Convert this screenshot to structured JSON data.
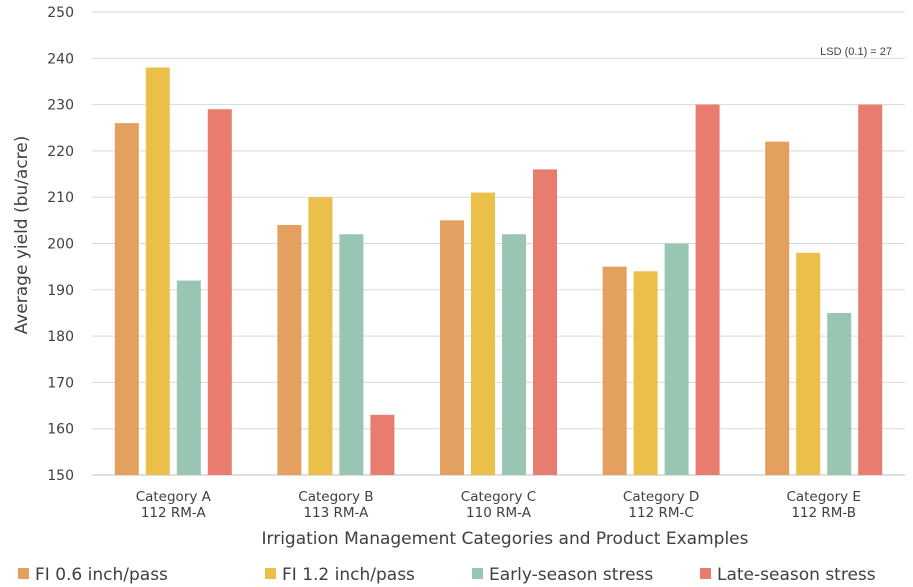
{
  "chart_data": {
    "type": "bar",
    "title": "",
    "xlabel": "Irrigation Management Categories and Product Examples",
    "ylabel": "Average yield (bu/acre)",
    "ylim": [
      150,
      250
    ],
    "yticks": [
      150,
      160,
      170,
      180,
      190,
      200,
      210,
      220,
      230,
      240,
      250
    ],
    "grid": true,
    "legend_position": "bottom",
    "annotation": "LSD (0.1) = 27",
    "categories": [
      [
        "Category A",
        "112 RM-A"
      ],
      [
        "Category B",
        "113 RM-A"
      ],
      [
        "Category C",
        "110 RM-A"
      ],
      [
        "Category D",
        "112 RM-C"
      ],
      [
        "Category E",
        "112 RM-B"
      ]
    ],
    "series": [
      {
        "name": "FI 0.6 inch/pass",
        "color": "#E3A05E",
        "values": [
          226,
          204,
          205,
          195,
          222
        ]
      },
      {
        "name": "FI 1.2 inch/pass",
        "color": "#EAC04A",
        "values": [
          238,
          210,
          211,
          194,
          198
        ]
      },
      {
        "name": "Early-season stress",
        "color": "#98C6B3",
        "values": [
          192,
          202,
          202,
          200,
          185
        ]
      },
      {
        "name": "Late-season stress",
        "color": "#E87C6F",
        "values": [
          229,
          163,
          216,
          230,
          230
        ]
      }
    ]
  }
}
